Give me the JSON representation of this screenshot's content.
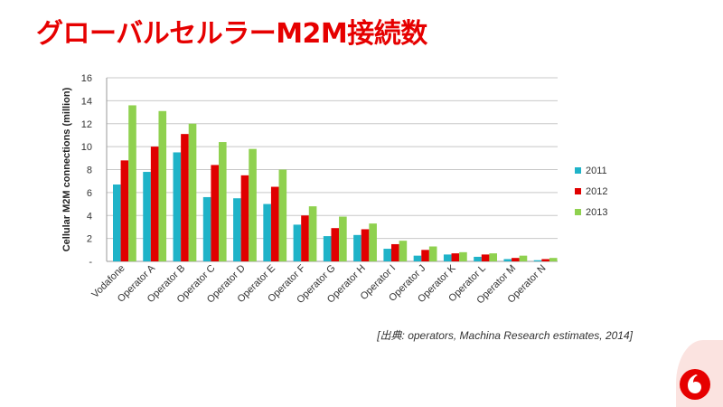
{
  "slide": {
    "title": "グローバルセルラーM2M接続数",
    "source": "[出典: operators, Machina Research estimates, 2014]"
  },
  "colors": {
    "title": "#e60000",
    "brand": "#e60000"
  },
  "icons": {
    "logo": "vodafone-logo-icon"
  },
  "chart_data": {
    "type": "bar",
    "title": "",
    "xlabel": "",
    "ylabel": "Cellular M2M connections (million)",
    "ylim": [
      0,
      16
    ],
    "yticks": [
      {
        "value": 0,
        "label": "-"
      },
      {
        "value": 2,
        "label": "2"
      },
      {
        "value": 4,
        "label": "4"
      },
      {
        "value": 6,
        "label": "6"
      },
      {
        "value": 8,
        "label": "8"
      },
      {
        "value": 10,
        "label": "10"
      },
      {
        "value": 12,
        "label": "12"
      },
      {
        "value": 14,
        "label": "14"
      },
      {
        "value": 16,
        "label": "16"
      }
    ],
    "grid": true,
    "legend_position": "right",
    "categories": [
      "Vodafone",
      "Operator A",
      "Operator B",
      "Operator C",
      "Operator D",
      "Operator E",
      "Operator F",
      "Operator G",
      "Operator H",
      "Operator I",
      "Operator J",
      "Operator K",
      "Operator L",
      "Operator M",
      "Operator N"
    ],
    "series": [
      {
        "name": "2011",
        "color": "#1fb3c8",
        "values": [
          6.7,
          7.8,
          9.5,
          5.6,
          5.5,
          5.0,
          3.2,
          2.2,
          2.3,
          1.1,
          0.5,
          0.6,
          0.4,
          0.2,
          0.1
        ]
      },
      {
        "name": "2012",
        "color": "#e00000",
        "values": [
          8.8,
          10.0,
          11.1,
          8.4,
          7.5,
          6.5,
          4.0,
          2.9,
          2.8,
          1.5,
          1.0,
          0.7,
          0.6,
          0.3,
          0.2
        ]
      },
      {
        "name": "2013",
        "color": "#8fd14f",
        "values": [
          13.6,
          13.1,
          12.0,
          10.4,
          9.8,
          8.0,
          4.8,
          3.9,
          3.3,
          1.8,
          1.3,
          0.8,
          0.7,
          0.5,
          0.3
        ]
      }
    ]
  }
}
